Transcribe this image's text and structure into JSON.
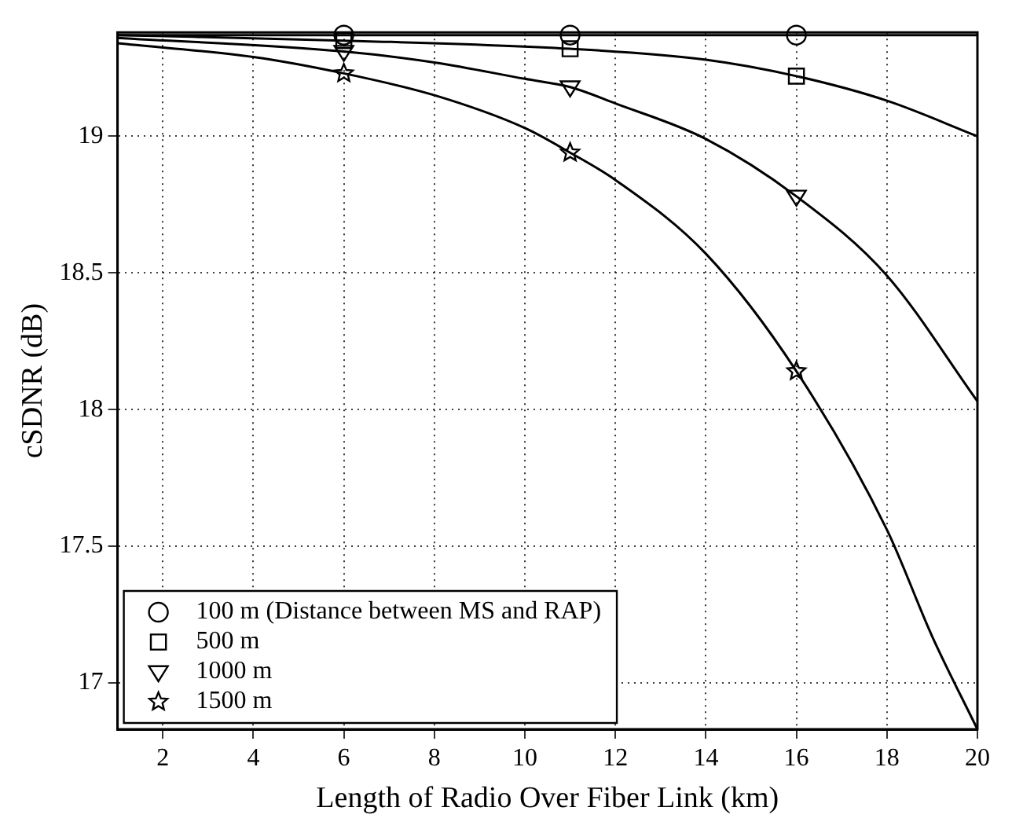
{
  "chart_data": {
    "type": "line",
    "xlabel": "Length of Radio Over Fiber Link (km)",
    "ylabel": "cSDNR (dB)",
    "xlim": [
      1,
      20
    ],
    "xticks": [
      2,
      4,
      6,
      8,
      10,
      12,
      14,
      16,
      18,
      20
    ],
    "ylim": [
      16.83,
      19.38
    ],
    "yticks": [
      17,
      17.5,
      18,
      18.5,
      19
    ],
    "grid": true,
    "legend": "bottom left",
    "line_style": "solid",
    "series": [
      {
        "type": "line",
        "color": "#000000",
        "marker": "none",
        "x": [
          1,
          6,
          11,
          16,
          20
        ],
        "values": [
          19.37,
          19.37,
          19.37,
          19.37,
          19.37
        ]
      },
      {
        "type": "line",
        "color": "#000000",
        "marker": "none",
        "x": [
          1,
          6,
          11,
          14,
          16,
          18,
          20
        ],
        "values": [
          19.37,
          19.35,
          19.32,
          19.28,
          19.22,
          19.13,
          19.0
        ]
      },
      {
        "type": "line",
        "color": "#000000",
        "marker": "none",
        "x": [
          1,
          6,
          8,
          10,
          11,
          12,
          14,
          16,
          18,
          20
        ],
        "values": [
          19.36,
          19.31,
          19.27,
          19.21,
          19.18,
          19.12,
          18.99,
          18.78,
          18.49,
          18.03
        ]
      },
      {
        "type": "line",
        "color": "#000000",
        "marker": "none",
        "x": [
          1,
          4,
          6,
          8,
          10,
          11,
          12,
          14,
          16,
          18,
          19,
          20
        ],
        "values": [
          19.34,
          19.29,
          19.23,
          19.15,
          19.03,
          18.94,
          18.84,
          18.57,
          18.14,
          17.56,
          17.17,
          16.83
        ]
      },
      {
        "type": "scatter",
        "name": "100 m (Distance between MS and RAP)",
        "color": "#000000",
        "marker": "circle",
        "x": [
          6,
          11,
          16
        ],
        "values": [
          19.37,
          19.37,
          19.37
        ]
      },
      {
        "type": "scatter",
        "name": "500 m",
        "color": "#000000",
        "marker": "square",
        "x": [
          6,
          11,
          16
        ],
        "values": [
          19.35,
          19.32,
          19.22
        ]
      },
      {
        "type": "scatter",
        "name": "1000 m",
        "color": "#000000",
        "marker": "triangle",
        "x": [
          6,
          11,
          16
        ],
        "values": [
          19.31,
          19.18,
          18.78
        ]
      },
      {
        "type": "scatter",
        "name": "1500 m",
        "color": "#000000",
        "marker": "star",
        "x": [
          6,
          11,
          16
        ],
        "values": [
          19.23,
          18.94,
          18.14
        ]
      }
    ]
  }
}
